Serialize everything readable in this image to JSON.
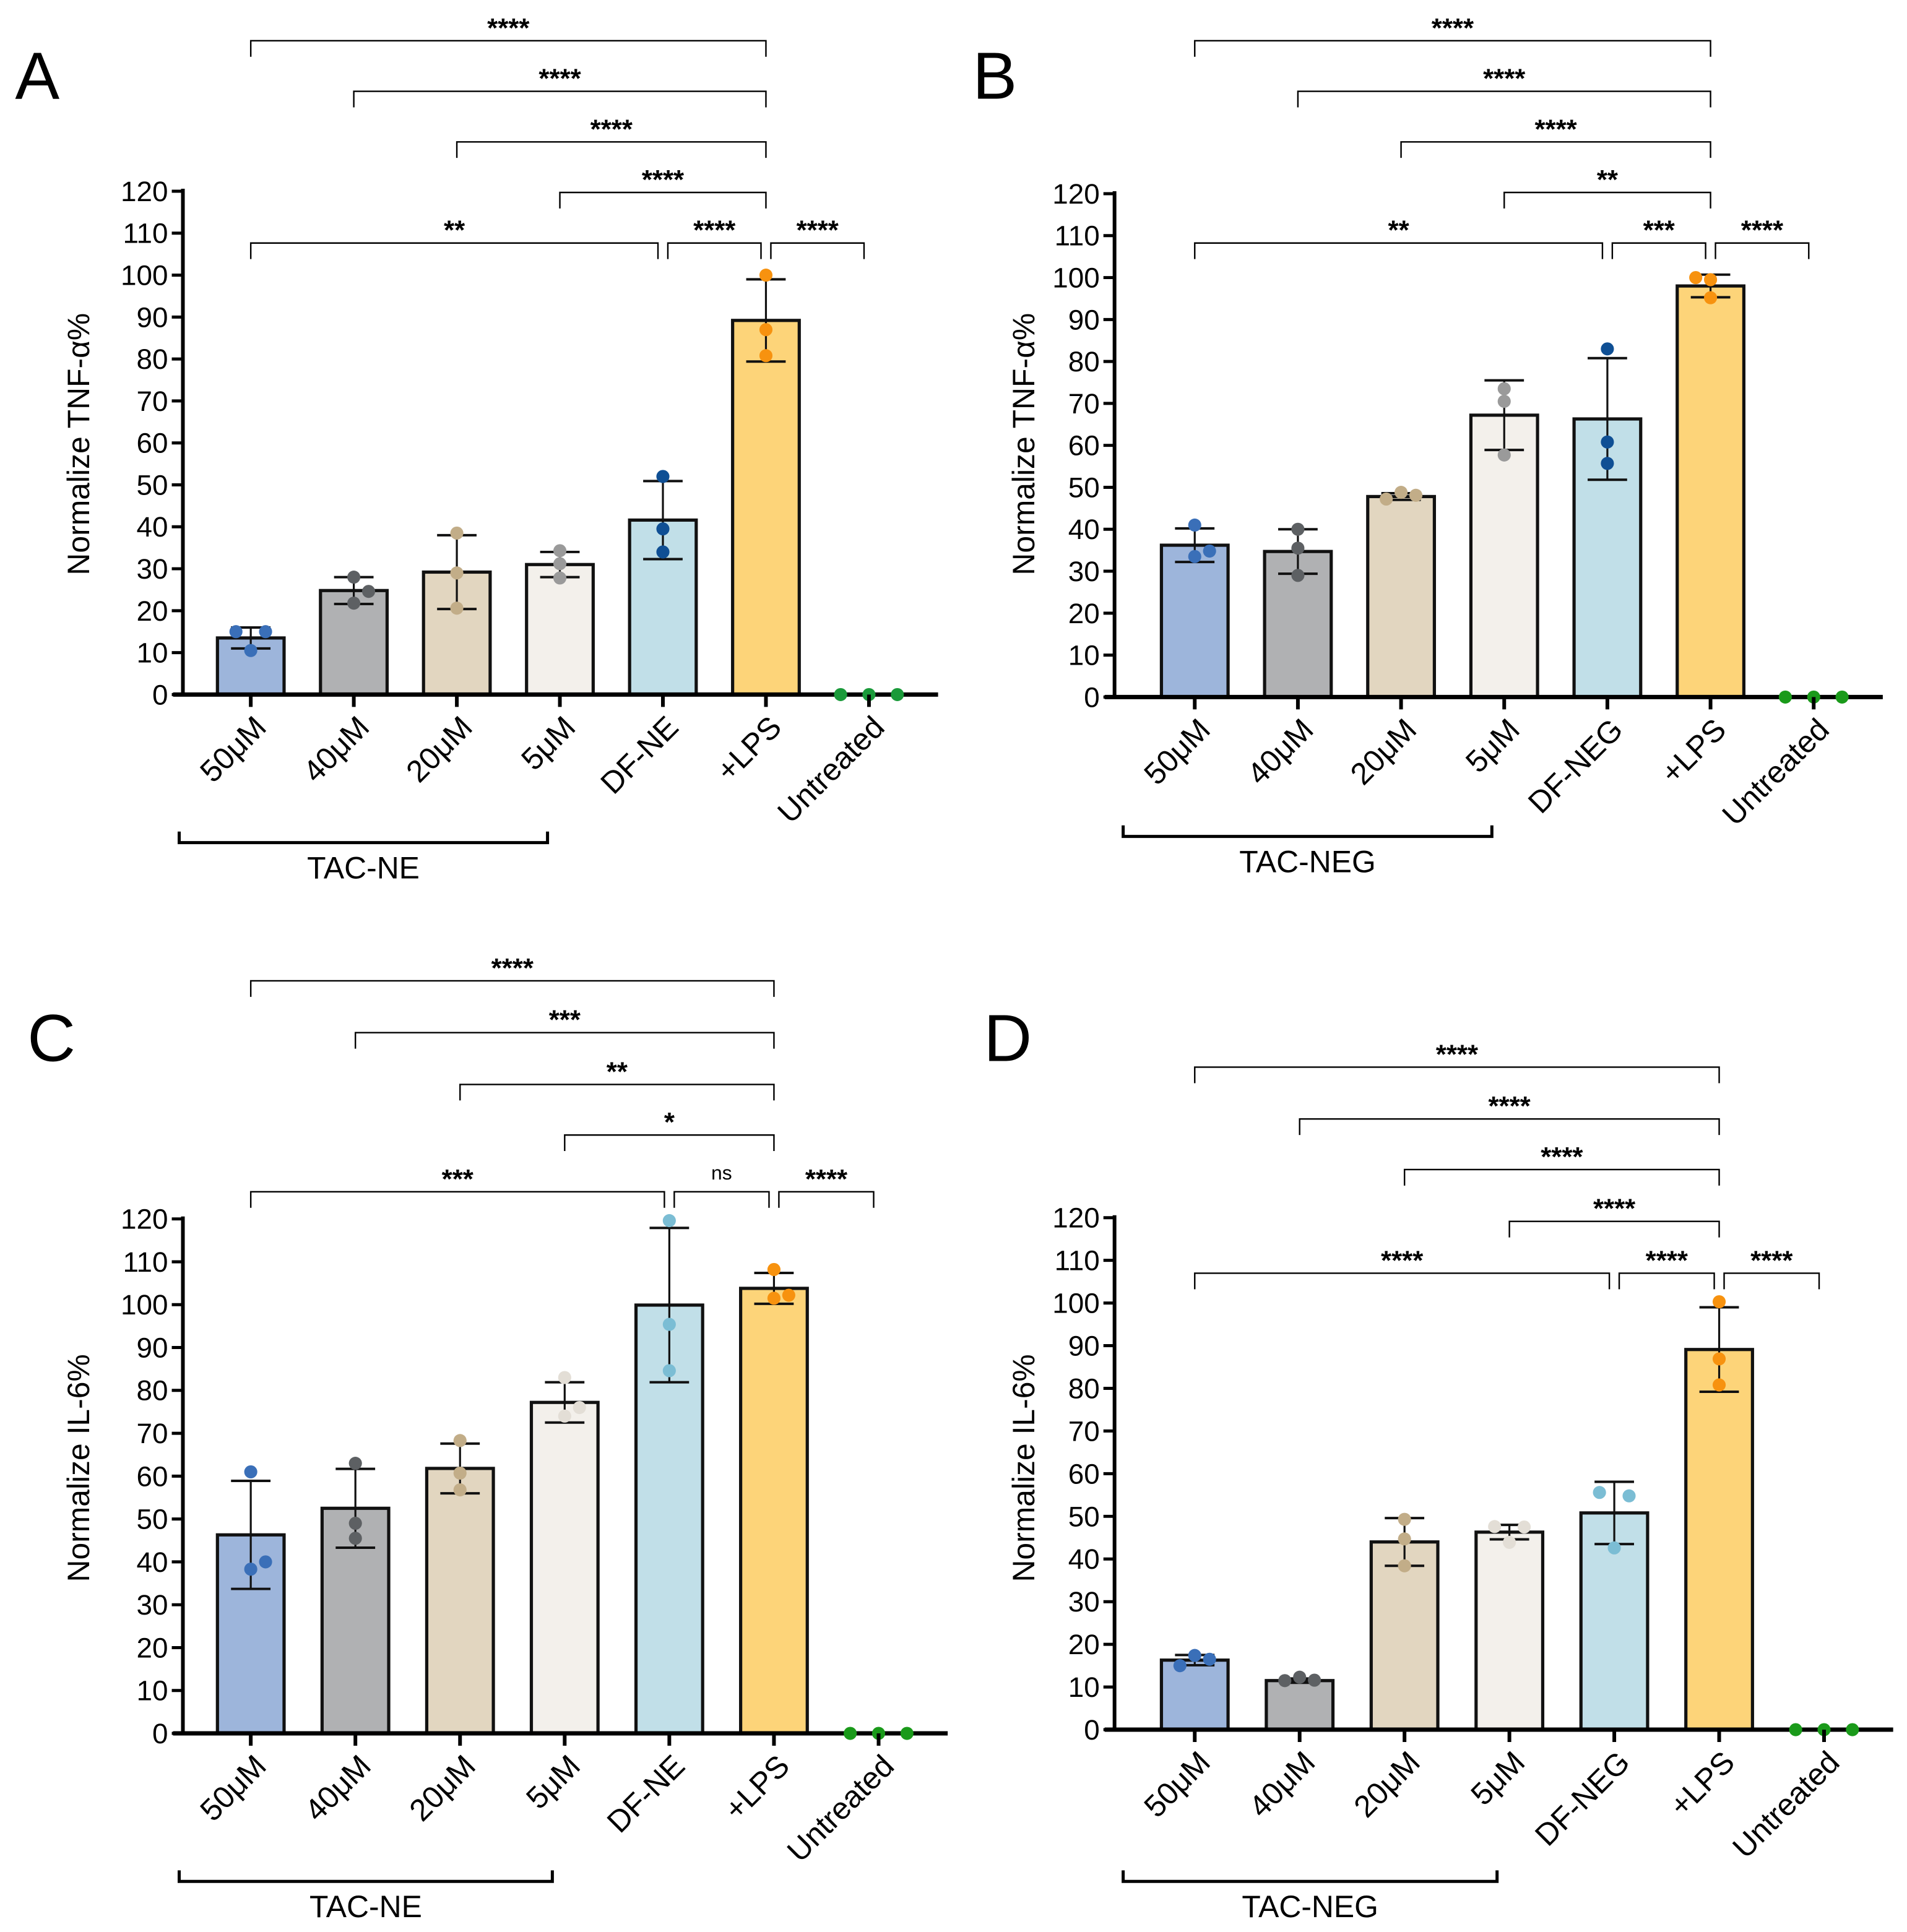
{
  "chart_data": [
    {
      "panel": "A",
      "type": "bar",
      "ylabel": "Normalize TNF-α%",
      "ylim": [
        0,
        120
      ],
      "yticks": [
        0,
        10,
        20,
        30,
        40,
        50,
        60,
        70,
        80,
        90,
        100,
        110,
        120
      ],
      "categories": [
        "50μM",
        "40μM",
        "20μM",
        "5μM",
        "DF-NE",
        "+LPS",
        "Untreated"
      ],
      "group_label": "TAC-NE",
      "group_span": [
        0,
        3
      ],
      "values": [
        13.5,
        24.8,
        29.2,
        31.0,
        41.6,
        89.2,
        0
      ],
      "sd": [
        2.5,
        3.2,
        8.8,
        3.0,
        9.3,
        9.8,
        0
      ],
      "points": [
        [
          15,
          10.5,
          15
        ],
        [
          28,
          21.8,
          24.6
        ],
        [
          38.5,
          29,
          20.6
        ],
        [
          34.3,
          27.8,
          31.2
        ],
        [
          52,
          39.5,
          34
        ],
        [
          100,
          87,
          80.8
        ],
        [
          0,
          0,
          0
        ]
      ],
      "bar_colors": [
        "#9db5db",
        "#b0b1b3",
        "#e2d6c0",
        "#f3f0eb",
        "#c1dfe8",
        "#fdd479",
        "none"
      ],
      "point_colors": [
        "#3a6fb8",
        "#5d6063",
        "#c2ad88",
        "#9a9a9a",
        "#0f4f94",
        "#f7920f",
        "#1a9a3a"
      ],
      "comparisons": [
        {
          "from": 0,
          "to": 5,
          "label": "****",
          "level": 5
        },
        {
          "from": 1,
          "to": 5,
          "label": "****",
          "level": 4
        },
        {
          "from": 2,
          "to": 5,
          "label": "****",
          "level": 3
        },
        {
          "from": 3,
          "to": 5,
          "label": "****",
          "level": 2
        },
        {
          "from": 0,
          "to": 4,
          "label": "**",
          "level": 1
        },
        {
          "from": 4,
          "to": 5,
          "label": "****",
          "level": 1
        },
        {
          "from": 5,
          "to": 6,
          "label": "****",
          "level": 1
        }
      ]
    },
    {
      "panel": "B",
      "type": "bar",
      "ylabel": "Normalize TNF-α%",
      "ylim": [
        0,
        120
      ],
      "yticks": [
        0,
        10,
        20,
        30,
        40,
        50,
        60,
        70,
        80,
        90,
        100,
        110,
        120
      ],
      "categories": [
        "50μM",
        "40μM",
        "20μM",
        "5μM",
        "DF-NEG",
        "+LPS",
        "Untreated"
      ],
      "group_label": "TAC-NEG",
      "group_span": [
        0,
        3
      ],
      "values": [
        36.2,
        34.7,
        47.8,
        67.2,
        66.3,
        98.0,
        0
      ],
      "sd": [
        4.0,
        5.3,
        0.8,
        8.3,
        14.5,
        2.7,
        0
      ],
      "points": [
        [
          41,
          33.5,
          34.8
        ],
        [
          40,
          35.5,
          29
        ],
        [
          47.2,
          48.8,
          48.1
        ],
        [
          73.5,
          70.5,
          57.7
        ],
        [
          83,
          60.8,
          55.7
        ],
        [
          100,
          99.5,
          95.2
        ],
        [
          0,
          0,
          0
        ]
      ],
      "bar_colors": [
        "#9db5db",
        "#b0b1b3",
        "#e2d6c0",
        "#f3f0eb",
        "#c1dfe8",
        "#fdd479",
        "none"
      ],
      "point_colors": [
        "#3a6fb8",
        "#5d6063",
        "#c2ad88",
        "#9a9a9a",
        "#0f4f94",
        "#f7920f",
        "#1a9a1a"
      ],
      "comparisons": [
        {
          "from": 0,
          "to": 5,
          "label": "****",
          "level": 5
        },
        {
          "from": 1,
          "to": 5,
          "label": "****",
          "level": 4
        },
        {
          "from": 2,
          "to": 5,
          "label": "****",
          "level": 3
        },
        {
          "from": 3,
          "to": 5,
          "label": "**",
          "level": 2
        },
        {
          "from": 0,
          "to": 4,
          "label": "**",
          "level": 1
        },
        {
          "from": 4,
          "to": 5,
          "label": "***",
          "level": 1
        },
        {
          "from": 5,
          "to": 6,
          "label": "****",
          "level": 1
        }
      ]
    },
    {
      "panel": "C",
      "type": "bar",
      "ylabel": "Normalize IL-6%",
      "ylim": [
        0,
        120
      ],
      "yticks": [
        0,
        10,
        20,
        30,
        40,
        50,
        60,
        70,
        80,
        90,
        100,
        110,
        120
      ],
      "categories": [
        "50μM",
        "40μM",
        "20μM",
        "5μM",
        "DF-NE",
        "+LPS",
        "Untreated"
      ],
      "group_label": "TAC-NE",
      "group_span": [
        0,
        3
      ],
      "values": [
        46.3,
        52.5,
        61.8,
        77.2,
        99.9,
        103.8,
        0
      ],
      "sd": [
        12.6,
        9.2,
        5.8,
        4.7,
        18.0,
        3.6,
        0
      ],
      "points": [
        [
          61,
          38.3,
          40
        ],
        [
          63,
          49,
          45.5
        ],
        [
          68.3,
          60.7,
          56.8
        ],
        [
          83,
          74,
          76
        ],
        [
          119.6,
          95.4,
          84.6
        ],
        [
          108.2,
          101.5,
          102.2
        ],
        [
          0,
          0,
          0
        ]
      ],
      "bar_colors": [
        "#9db5db",
        "#b0b1b3",
        "#e2d6c0",
        "#f3f0eb",
        "#c1dfe8",
        "#fdd479",
        "none"
      ],
      "point_colors": [
        "#3a6fb8",
        "#5d6063",
        "#c2ad88",
        "#e3ded6",
        "#7bbdd4",
        "#f7920f",
        "#1a9a1a"
      ],
      "comparisons": [
        {
          "from": 0,
          "to": 5,
          "label": "****",
          "level": 5
        },
        {
          "from": 1,
          "to": 5,
          "label": "***",
          "level": 4
        },
        {
          "from": 2,
          "to": 5,
          "label": "**",
          "level": 3
        },
        {
          "from": 3,
          "to": 5,
          "label": "*",
          "level": 2
        },
        {
          "from": 0,
          "to": 4,
          "label": "***",
          "level": 1
        },
        {
          "from": 4,
          "to": 5,
          "label": "ns",
          "level": 1
        },
        {
          "from": 5,
          "to": 6,
          "label": "****",
          "level": 1
        }
      ]
    },
    {
      "panel": "D",
      "type": "bar",
      "ylabel": "Normalize IL-6%",
      "ylim": [
        0,
        120
      ],
      "yticks": [
        0,
        10,
        20,
        30,
        40,
        50,
        60,
        70,
        80,
        90,
        100,
        110,
        120
      ],
      "categories": [
        "50μM",
        "40μM",
        "20μM",
        "5μM",
        "DF-NEG",
        "+LPS",
        "Untreated"
      ],
      "group_label": "TAC-NEG",
      "group_span": [
        0,
        3
      ],
      "values": [
        16.3,
        11.5,
        44.0,
        46.3,
        50.8,
        89.1,
        0
      ],
      "sd": [
        1.2,
        0.5,
        5.6,
        1.7,
        7.3,
        9.9,
        0
      ],
      "points": [
        [
          15,
          17.4,
          16.5
        ],
        [
          11.5,
          12.3,
          11.6
        ],
        [
          49.3,
          44.7,
          38.4
        ],
        [
          47.6,
          43.9,
          47.5
        ],
        [
          55.6,
          42.6,
          54.8
        ],
        [
          100.3,
          86.9,
          80.8
        ],
        [
          0,
          0,
          0
        ]
      ],
      "bar_colors": [
        "#9db5db",
        "#b0b1b3",
        "#e2d6c0",
        "#f3f0eb",
        "#c1dfe8",
        "#fdd479",
        "none"
      ],
      "point_colors": [
        "#3a6fb8",
        "#5d6063",
        "#c2ad88",
        "#e3ded6",
        "#7bbdd4",
        "#f7920f",
        "#1a9a1a"
      ],
      "comparisons": [
        {
          "from": 0,
          "to": 5,
          "label": "****",
          "level": 5
        },
        {
          "from": 1,
          "to": 5,
          "label": "****",
          "level": 4
        },
        {
          "from": 2,
          "to": 5,
          "label": "****",
          "level": 3
        },
        {
          "from": 3,
          "to": 5,
          "label": "****",
          "level": 2
        },
        {
          "from": 0,
          "to": 4,
          "label": "****",
          "level": 1
        },
        {
          "from": 4,
          "to": 5,
          "label": "****",
          "level": 1
        },
        {
          "from": 5,
          "to": 6,
          "label": "****",
          "level": 1
        }
      ]
    }
  ]
}
